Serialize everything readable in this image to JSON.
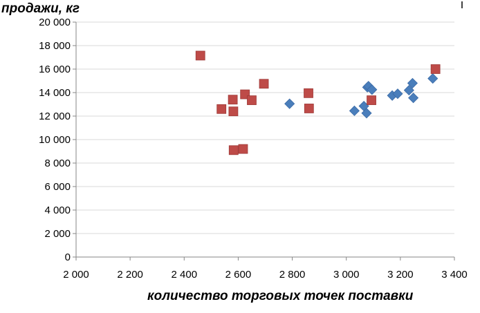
{
  "chart_data": {
    "type": "scatter",
    "title": "",
    "xlabel": "количество торговых точек поставки",
    "ylabel": "продажи, кг",
    "xlim": [
      2000,
      3400
    ],
    "ylim": [
      0,
      20000
    ],
    "grid": "horizontal",
    "legend": "none",
    "x_ticks": [
      "2 000",
      "2 200",
      "2 400",
      "2 600",
      "2 800",
      "3 000",
      "3 200",
      "3 400"
    ],
    "y_ticks": [
      "0",
      "2 000",
      "4 000",
      "6 000",
      "8 000",
      "10 000",
      "12 000",
      "14 000",
      "16 000",
      "18 000",
      "20 000"
    ],
    "series": [
      {
        "marker": "diamond",
        "color": "#4a7ebb",
        "points": [
          [
            2790,
            13050
          ],
          [
            3030,
            12450
          ],
          [
            3065,
            12850
          ],
          [
            3075,
            12250
          ],
          [
            3078,
            14450
          ],
          [
            3082,
            14550
          ],
          [
            3095,
            14250
          ],
          [
            3170,
            13750
          ],
          [
            3190,
            13900
          ],
          [
            3232,
            14200
          ],
          [
            3245,
            14800
          ],
          [
            3248,
            13550
          ],
          [
            3320,
            15200
          ]
        ]
      },
      {
        "marker": "square",
        "color": "#be4b48",
        "points": [
          [
            2460,
            17150
          ],
          [
            2538,
            12600
          ],
          [
            2580,
            13400
          ],
          [
            2582,
            12400
          ],
          [
            2583,
            9100
          ],
          [
            2618,
            9200
          ],
          [
            2625,
            13850
          ],
          [
            2650,
            13350
          ],
          [
            2695,
            14750
          ],
          [
            2860,
            13950
          ],
          [
            2862,
            12650
          ],
          [
            3093,
            13350
          ],
          [
            3330,
            16000
          ]
        ]
      }
    ]
  }
}
